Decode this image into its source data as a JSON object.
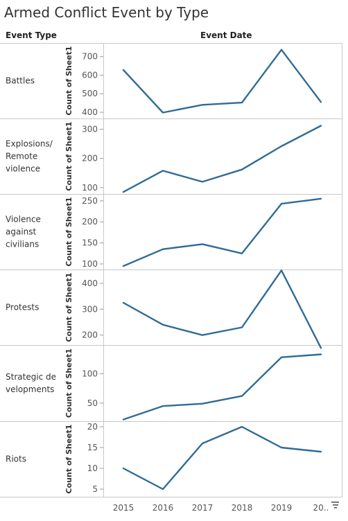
{
  "header": {
    "title": "Armed Conflict Event by Type",
    "row_header": "Event Type",
    "column_header": "Event Date"
  },
  "chart_data": {
    "type": "line",
    "x": [
      "2015",
      "2016",
      "2017",
      "2018",
      "2019",
      "20.."
    ],
    "ylabel": "Count of Sheet1",
    "line_color": "#2f6b97",
    "grid": false,
    "panels": [
      {
        "label": [
          "Battles"
        ],
        "values": [
          628,
          398,
          440,
          452,
          737,
          455
        ],
        "ylim": [
          385,
          755
        ],
        "ticks": [
          400,
          500,
          600,
          700
        ]
      },
      {
        "label": [
          "Explosions/",
          "Remote",
          "violence"
        ],
        "values": [
          85,
          158,
          120,
          162,
          242,
          312
        ],
        "ylim": [
          90,
          325
        ],
        "ticks": [
          100,
          200,
          300
        ]
      },
      {
        "label": [
          "Violence",
          "against",
          "civilians"
        ],
        "values": [
          95,
          135,
          147,
          125,
          243,
          255
        ],
        "ylim": [
          95,
          258
        ],
        "ticks": [
          100,
          150,
          200,
          250
        ]
      },
      {
        "label": [
          "Protests"
        ],
        "values": [
          325,
          240,
          200,
          230,
          450,
          150
        ],
        "ylim": [
          175,
          440
        ],
        "ticks": [
          200,
          300,
          400
        ]
      },
      {
        "label": [
          "Strategic de",
          "velopments"
        ],
        "values": [
          22,
          45,
          49,
          62,
          128,
          133
        ],
        "ylim": [
          25,
          143
        ],
        "ticks": [
          50,
          100
        ]
      },
      {
        "label": [
          "Riots"
        ],
        "values": [
          10,
          5,
          16,
          20,
          15,
          14
        ],
        "ylim": [
          4,
          20.5
        ],
        "ticks": [
          5,
          10,
          15,
          20
        ]
      }
    ]
  },
  "toolbar": {
    "filter_icon": "sort-filter-icon"
  }
}
